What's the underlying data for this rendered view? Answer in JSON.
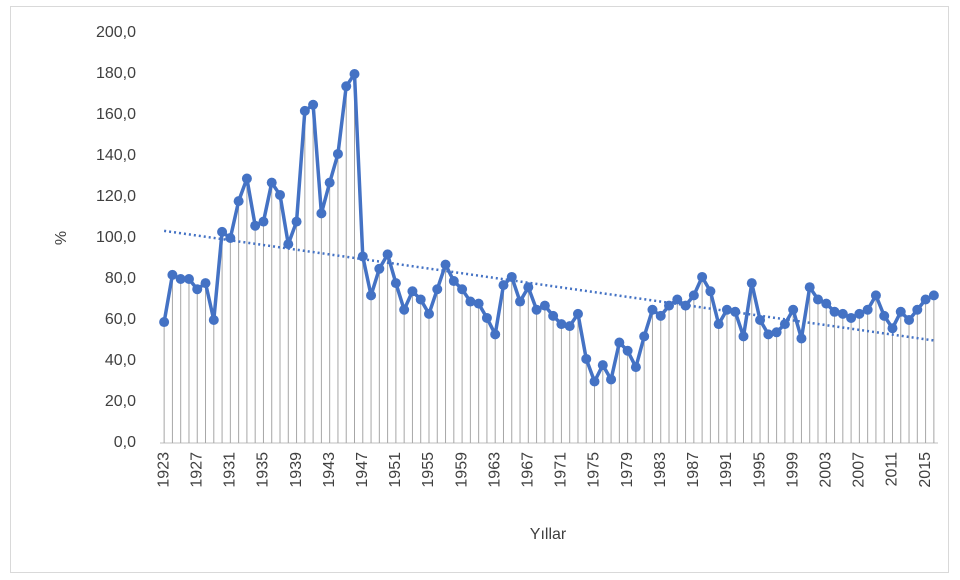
{
  "chart_data": {
    "type": "line",
    "x_label": "Yıllar",
    "y_label": "%",
    "x": [
      1923,
      1924,
      1925,
      1926,
      1927,
      1928,
      1929,
      1930,
      1931,
      1932,
      1933,
      1934,
      1935,
      1936,
      1937,
      1938,
      1939,
      1940,
      1941,
      1942,
      1943,
      1944,
      1945,
      1946,
      1947,
      1948,
      1949,
      1950,
      1951,
      1952,
      1953,
      1954,
      1955,
      1956,
      1957,
      1958,
      1959,
      1960,
      1961,
      1962,
      1963,
      1964,
      1965,
      1966,
      1967,
      1968,
      1969,
      1970,
      1971,
      1972,
      1973,
      1974,
      1975,
      1976,
      1977,
      1978,
      1979,
      1980,
      1981,
      1982,
      1983,
      1984,
      1985,
      1986,
      1987,
      1988,
      1989,
      1990,
      1991,
      1992,
      1993,
      1994,
      1995,
      1996,
      1997,
      1998,
      1999,
      2000,
      2001,
      2002,
      2003,
      2004,
      2005,
      2006,
      2007,
      2008,
      2009,
      2010,
      2011,
      2012,
      2013,
      2014,
      2015,
      2016
    ],
    "values": [
      59,
      82,
      80,
      80,
      75,
      78,
      60,
      103,
      100,
      118,
      129,
      106,
      108,
      127,
      121,
      97,
      108,
      162,
      165,
      112,
      127,
      141,
      174,
      180,
      91,
      72,
      85,
      92,
      78,
      65,
      74,
      70,
      63,
      75,
      87,
      79,
      75,
      69,
      68,
      61,
      53,
      77,
      81,
      69,
      76,
      65,
      67,
      62,
      58,
      57,
      63,
      41,
      30,
      38,
      31,
      49,
      45,
      37,
      52,
      65,
      62,
      67,
      70,
      67,
      72,
      81,
      74,
      58,
      65,
      64,
      52,
      78,
      60,
      53,
      54,
      58,
      65,
      51,
      76,
      70,
      68,
      64,
      63,
      61,
      63,
      65,
      72,
      62,
      56,
      64,
      60,
      65,
      70,
      72
    ],
    "color": "#4472c4",
    "drop_lines": true,
    "drop_line_color": "#a6a6a6",
    "trendline": {
      "type": "linear",
      "color": "#4472c4",
      "style": "dotted"
    },
    "xlim": [
      1922.5,
      2016.5
    ],
    "xticks": [
      1923,
      1927,
      1931,
      1935,
      1939,
      1943,
      1947,
      1951,
      1955,
      1959,
      1963,
      1967,
      1971,
      1975,
      1979,
      1983,
      1987,
      1991,
      1995,
      1999,
      2003,
      2007,
      2011,
      2015
    ],
    "ylim": [
      0,
      200
    ],
    "yticks": [
      {
        "value": 0,
        "label": "0,0"
      },
      {
        "value": 20,
        "label": "20,0"
      },
      {
        "value": 40,
        "label": "40,0"
      },
      {
        "value": 60,
        "label": "60,0"
      },
      {
        "value": 80,
        "label": "80,0"
      },
      {
        "value": 100,
        "label": "100,0"
      },
      {
        "value": 120,
        "label": "120,0"
      },
      {
        "value": 140,
        "label": "140,0"
      },
      {
        "value": 160,
        "label": "160,0"
      },
      {
        "value": 180,
        "label": "180,0"
      },
      {
        "value": 200,
        "label": "200,0"
      }
    ],
    "grid": false
  }
}
